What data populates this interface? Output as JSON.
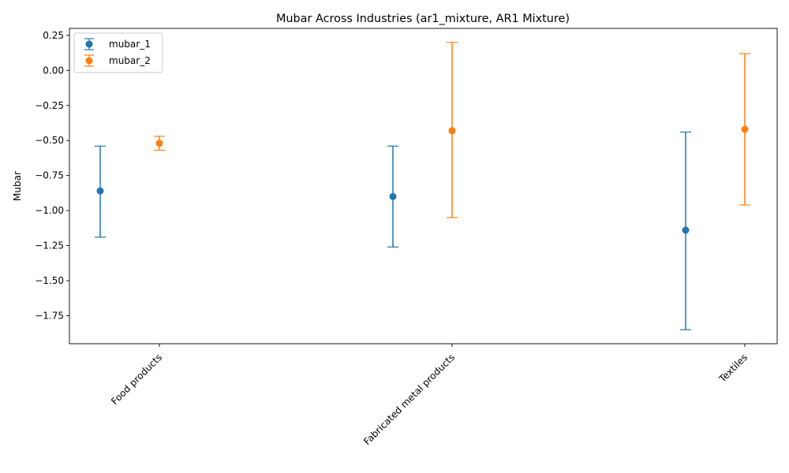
{
  "chart_data": {
    "type": "errorbar",
    "title": "Mubar Across Industries (ar1_mixture, AR1 Mixture)",
    "xlabel": "",
    "ylabel": "Mubar",
    "categories": [
      "Food products",
      "Fabricated metal products",
      "Textiles"
    ],
    "ylim": [
      -1.95,
      0.3
    ],
    "yticks": [
      0.25,
      0.0,
      -0.25,
      -0.5,
      -0.75,
      -1.0,
      -1.25,
      -1.5,
      -1.75
    ],
    "ytick_labels": [
      "0.25",
      "0.00",
      "−0.25",
      "−0.50",
      "−0.75",
      "−1.00",
      "−1.25",
      "−1.50",
      "−1.75"
    ],
    "grid": false,
    "legend_position": "upper-left",
    "series": [
      {
        "name": "mubar_1",
        "color": "#1f77b4",
        "values": [
          -0.86,
          -0.9,
          -1.14
        ],
        "lower": [
          -1.19,
          -1.26,
          -1.85
        ],
        "upper": [
          -0.54,
          -0.54,
          -0.44
        ]
      },
      {
        "name": "mubar_2",
        "color": "#ff7f0e",
        "values": [
          -0.52,
          -0.43,
          -0.42
        ],
        "lower": [
          -0.57,
          -1.05,
          -0.96
        ],
        "upper": [
          -0.47,
          0.2,
          0.12
        ]
      }
    ]
  }
}
